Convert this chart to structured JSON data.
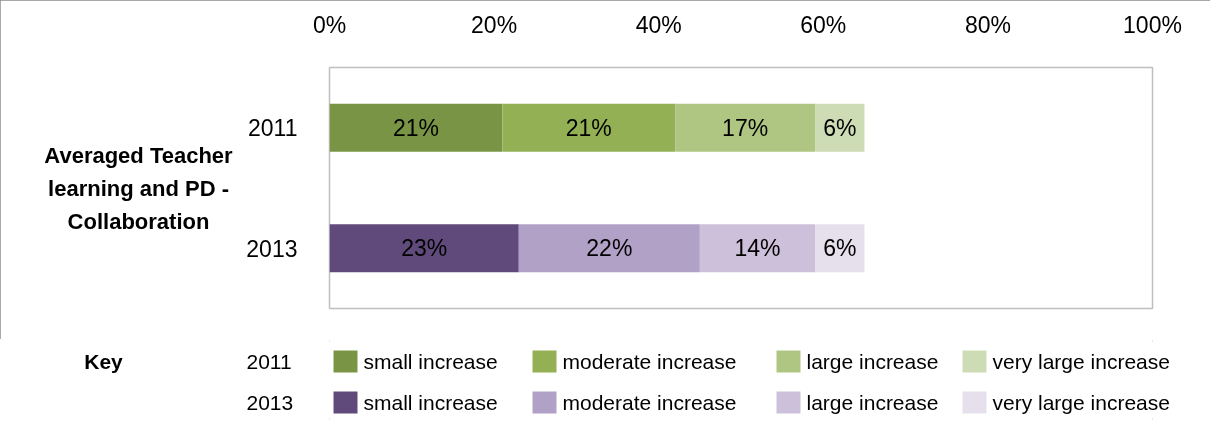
{
  "chart_data": {
    "type": "bar",
    "orientation": "horizontal",
    "stacked": true,
    "ylabel": "Averaged Teacher learning and PD - Collaboration",
    "legend_title": "Key",
    "legend": "bottom",
    "categories": [
      "2011",
      "2013"
    ],
    "xlim": [
      0,
      100
    ],
    "xticks": [
      {
        "value": 0,
        "label": "0%"
      },
      {
        "value": 20,
        "label": "20%"
      },
      {
        "value": 40,
        "label": "40%"
      },
      {
        "value": 60,
        "label": "60%"
      },
      {
        "value": 80,
        "label": "80%"
      },
      {
        "value": 100,
        "label": "100%"
      }
    ],
    "series": [
      {
        "name": "small increase",
        "colors": [
          "#7a9445",
          "#604a7b"
        ],
        "values": [
          21,
          23
        ],
        "value_labels": [
          "21%",
          "23%"
        ]
      },
      {
        "name": "moderate increase",
        "colors": [
          "#93b055",
          "#b2a1c7"
        ],
        "values": [
          21,
          22
        ],
        "value_labels": [
          "21%",
          "22%"
        ]
      },
      {
        "name": "large increase",
        "colors": [
          "#afc683",
          "#ccc0da"
        ],
        "values": [
          17,
          14
        ],
        "value_labels": [
          "17%",
          "14%"
        ]
      },
      {
        "name": "very large increase",
        "colors": [
          "#cedcb5",
          "#e5e0ec"
        ],
        "values": [
          6,
          6
        ],
        "value_labels": [
          "6%",
          "6%"
        ]
      }
    ]
  }
}
